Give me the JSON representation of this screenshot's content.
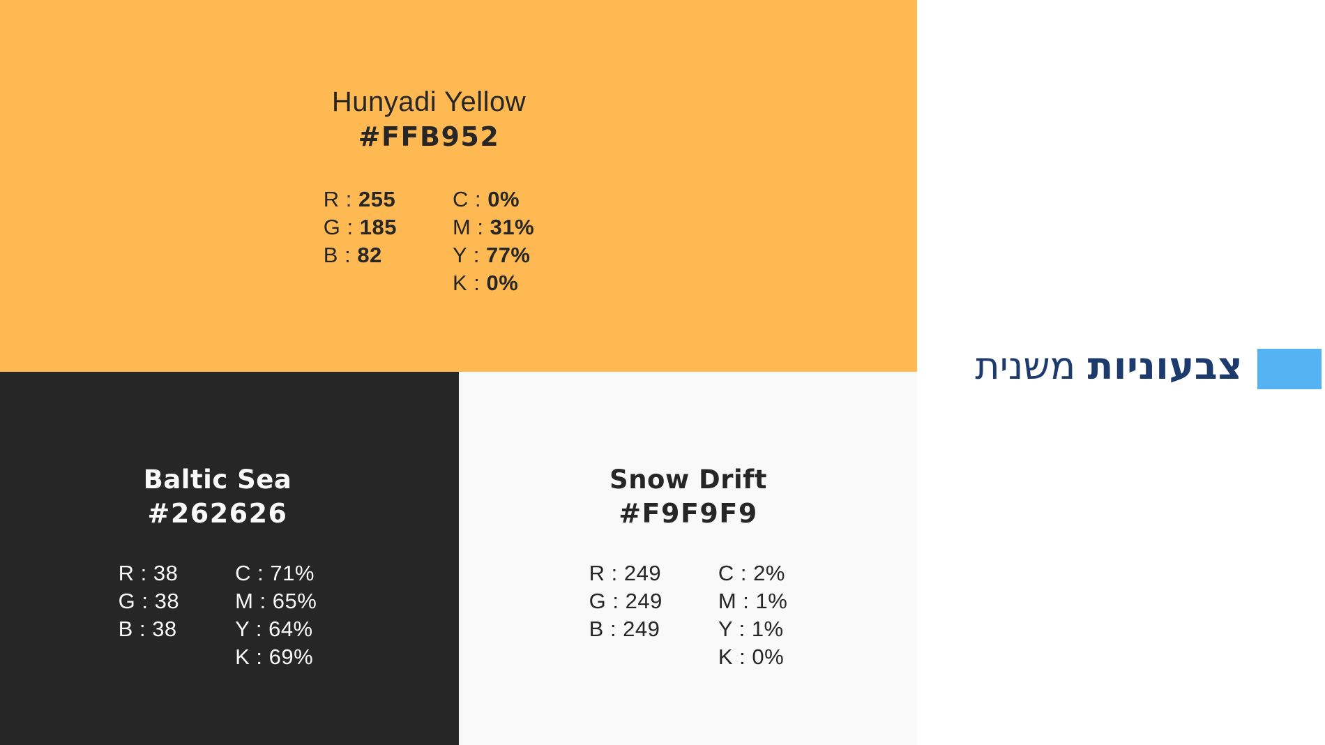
{
  "title": {
    "bold_word": "צבעוניות",
    "regular_word": "משנית",
    "color": "#1C3A6B",
    "accent_bar_color": "#55B2F3"
  },
  "cards": [
    {
      "name": "Hunyadi Yellow",
      "hex": "#FFB952",
      "background": "#FFB952",
      "text_color": "#262626",
      "rgb": [
        {
          "prefix": "R : ",
          "value": "255"
        },
        {
          "prefix": "G : ",
          "value": "185"
        },
        {
          "prefix": "B : ",
          "value": "82"
        }
      ],
      "cmyk": [
        {
          "prefix": "C : ",
          "value": "0%"
        },
        {
          "prefix": "M : ",
          "value": "31%"
        },
        {
          "prefix": "Y : ",
          "value": "77%"
        },
        {
          "prefix": "K : ",
          "value": "0%"
        }
      ]
    },
    {
      "name": "Baltic Sea",
      "hex": "#262626",
      "background": "#262626",
      "text_color": "#F9F9F9",
      "rgb": [
        {
          "prefix": "R : ",
          "value": "38"
        },
        {
          "prefix": "G : ",
          "value": "38"
        },
        {
          "prefix": "B : ",
          "value": "38"
        }
      ],
      "cmyk": [
        {
          "prefix": "C : ",
          "value": "71%"
        },
        {
          "prefix": "M : ",
          "value": "65%"
        },
        {
          "prefix": "Y : ",
          "value": "64%"
        },
        {
          "prefix": "K : ",
          "value": "69%"
        }
      ]
    },
    {
      "name": "Snow Drift",
      "hex": "#F9F9F9",
      "background": "#F9F9F9",
      "text_color": "#262626",
      "rgb": [
        {
          "prefix": "R : ",
          "value": "249"
        },
        {
          "prefix": "G : ",
          "value": "249"
        },
        {
          "prefix": "B : ",
          "value": "249"
        }
      ],
      "cmyk": [
        {
          "prefix": "C : ",
          "value": "2%"
        },
        {
          "prefix": "M : ",
          "value": "1%"
        },
        {
          "prefix": "Y : ",
          "value": "1%"
        },
        {
          "prefix": "K : ",
          "value": "0%"
        }
      ]
    }
  ]
}
